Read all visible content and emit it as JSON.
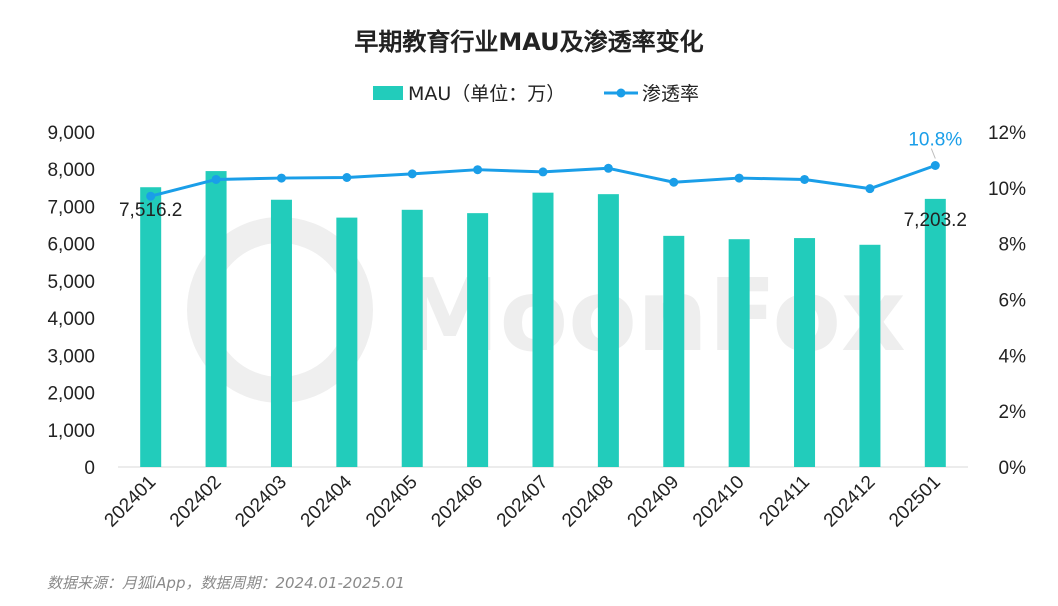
{
  "chart_data": {
    "type": "bar+line",
    "title": "早期教育行业MAU及渗透率变化",
    "categories": [
      "202401",
      "202402",
      "202403",
      "202404",
      "202405",
      "202406",
      "202407",
      "202408",
      "202409",
      "202410",
      "202411",
      "202412",
      "202501"
    ],
    "series": [
      {
        "name": "MAU（单位：万）",
        "type": "bar",
        "axis": "left",
        "color": "#22ccbb",
        "values": [
          7516.2,
          7950,
          7180,
          6700,
          6910,
          6820,
          7370,
          7330,
          6210,
          6120,
          6150,
          5970,
          7203.2
        ]
      },
      {
        "name": "渗透率",
        "type": "line",
        "axis": "right",
        "color": "#1a9ee8",
        "values": [
          9.7,
          10.3,
          10.35,
          10.37,
          10.5,
          10.65,
          10.57,
          10.7,
          10.2,
          10.35,
          10.3,
          9.97,
          10.8
        ]
      }
    ],
    "y_left": {
      "ticks": [
        "0",
        "1,000",
        "2,000",
        "3,000",
        "4,000",
        "5,000",
        "6,000",
        "7,000",
        "8,000",
        "9,000"
      ],
      "min": 0,
      "max": 9000
    },
    "y_right": {
      "ticks": [
        "0%",
        "2%",
        "4%",
        "6%",
        "8%",
        "10%",
        "12%"
      ],
      "min": 0,
      "max": 12
    },
    "data_labels": {
      "bar_first": "7,516.2",
      "bar_last": "7,203.2",
      "line_last": "10.8%"
    },
    "legend_position": "top-center",
    "grid": false
  },
  "source_text": "数据来源：月狐iApp，数据周期：2024.01-2025.01",
  "watermark_text": "MoonFox"
}
